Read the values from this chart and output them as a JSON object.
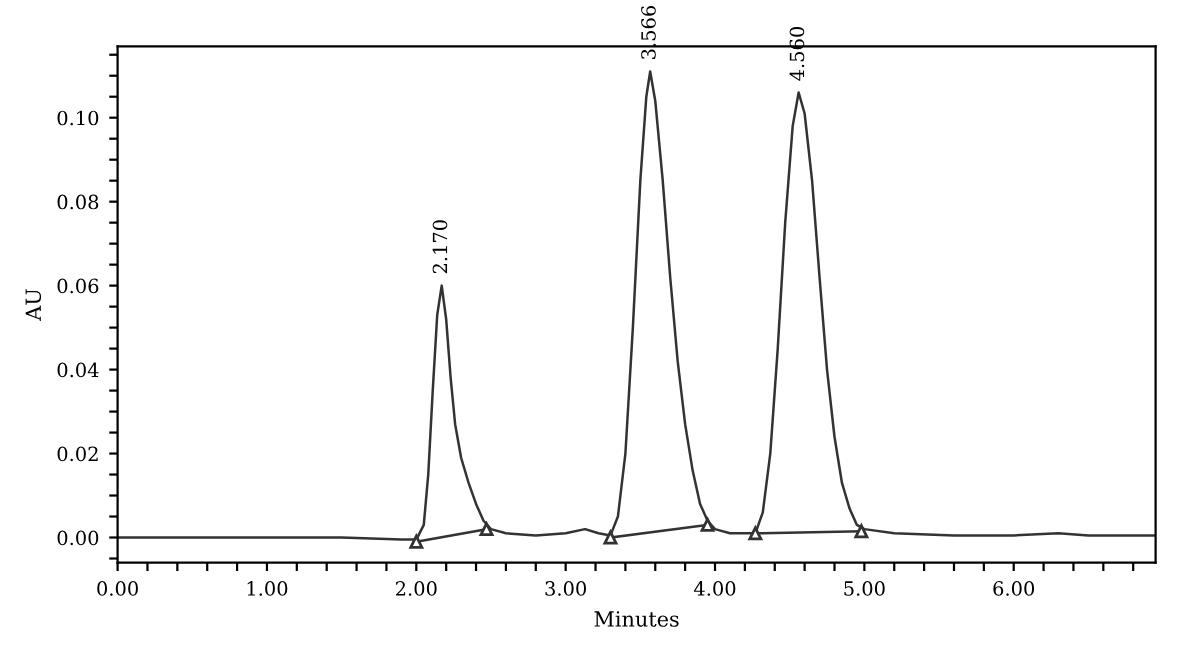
{
  "chart_data": {
    "type": "line",
    "xlabel": "Minutes",
    "ylabel": "AU",
    "xlim": [
      0,
      6.95
    ],
    "ylim": [
      -0.006,
      0.117
    ],
    "xticks": [
      {
        "value": 0,
        "label": "0.00"
      },
      {
        "value": 0.2,
        "label": null
      },
      {
        "value": 0.4,
        "label": null
      },
      {
        "value": 0.6,
        "label": null
      },
      {
        "value": 0.8,
        "label": null
      },
      {
        "value": 1,
        "label": "1.00"
      },
      {
        "value": 1.2,
        "label": null
      },
      {
        "value": 1.4,
        "label": null
      },
      {
        "value": 1.6,
        "label": null
      },
      {
        "value": 1.8,
        "label": null
      },
      {
        "value": 2,
        "label": "2.00"
      },
      {
        "value": 2.2,
        "label": null
      },
      {
        "value": 2.4,
        "label": null
      },
      {
        "value": 2.6,
        "label": null
      },
      {
        "value": 2.8,
        "label": null
      },
      {
        "value": 3,
        "label": "3.00"
      },
      {
        "value": 3.2,
        "label": null
      },
      {
        "value": 3.4,
        "label": null
      },
      {
        "value": 3.6,
        "label": null
      },
      {
        "value": 3.8,
        "label": null
      },
      {
        "value": 4,
        "label": "4.00"
      },
      {
        "value": 4.2,
        "label": null
      },
      {
        "value": 4.4,
        "label": null
      },
      {
        "value": 4.6,
        "label": null
      },
      {
        "value": 4.8,
        "label": null
      },
      {
        "value": 5,
        "label": "5.00"
      },
      {
        "value": 5.2,
        "label": null
      },
      {
        "value": 5.4,
        "label": null
      },
      {
        "value": 5.6,
        "label": null
      },
      {
        "value": 5.8,
        "label": null
      },
      {
        "value": 6,
        "label": "6.00"
      },
      {
        "value": 6.2,
        "label": null
      },
      {
        "value": 6.4,
        "label": null
      },
      {
        "value": 6.6,
        "label": null
      },
      {
        "value": 6.8,
        "label": null
      }
    ],
    "yticks": [
      {
        "value": -0.005,
        "label": null
      },
      {
        "value": 0,
        "label": "0.00"
      },
      {
        "value": 0.005,
        "label": null
      },
      {
        "value": 0.01,
        "label": null
      },
      {
        "value": 0.015,
        "label": null
      },
      {
        "value": 0.02,
        "label": "0.02"
      },
      {
        "value": 0.025,
        "label": null
      },
      {
        "value": 0.03,
        "label": null
      },
      {
        "value": 0.035,
        "label": null
      },
      {
        "value": 0.04,
        "label": "0.04"
      },
      {
        "value": 0.045,
        "label": null
      },
      {
        "value": 0.05,
        "label": null
      },
      {
        "value": 0.055,
        "label": null
      },
      {
        "value": 0.06,
        "label": "0.06"
      },
      {
        "value": 0.065,
        "label": null
      },
      {
        "value": 0.07,
        "label": null
      },
      {
        "value": 0.075,
        "label": null
      },
      {
        "value": 0.08,
        "label": "0.08"
      },
      {
        "value": 0.085,
        "label": null
      },
      {
        "value": 0.09,
        "label": null
      },
      {
        "value": 0.095,
        "label": null
      },
      {
        "value": 0.1,
        "label": "0.10"
      },
      {
        "value": 0.105,
        "label": null
      },
      {
        "value": 0.11,
        "label": null
      },
      {
        "value": 0.115,
        "label": null
      }
    ],
    "grid": false,
    "marker": "none",
    "line_style": "solid",
    "series": [
      {
        "color": "#333333",
        "x": [
          0,
          0.5,
          1.0,
          1.5,
          1.9,
          2.0,
          2.05,
          2.08,
          2.11,
          2.14,
          2.17,
          2.2,
          2.23,
          2.26,
          2.3,
          2.35,
          2.4,
          2.45,
          2.5,
          2.6,
          2.8,
          3.0,
          3.13,
          3.22,
          3.3,
          3.35,
          3.4,
          3.45,
          3.5,
          3.54,
          3.566,
          3.6,
          3.65,
          3.7,
          3.75,
          3.8,
          3.85,
          3.9,
          3.95,
          4.0,
          4.1,
          4.2,
          4.27,
          4.32,
          4.37,
          4.42,
          4.47,
          4.52,
          4.56,
          4.6,
          4.65,
          4.7,
          4.75,
          4.8,
          4.85,
          4.9,
          4.95,
          5.0,
          5.2,
          5.6,
          6.0,
          6.3,
          6.5,
          6.95
        ],
        "values": [
          0,
          0,
          0,
          0,
          -0.0005,
          -0.0005,
          0.003,
          0.015,
          0.035,
          0.053,
          0.06,
          0.052,
          0.038,
          0.027,
          0.019,
          0.013,
          0.008,
          0.004,
          0.002,
          0.001,
          0.0005,
          0.001,
          0.002,
          0.001,
          0.0005,
          0.005,
          0.02,
          0.05,
          0.085,
          0.105,
          0.111,
          0.104,
          0.085,
          0.062,
          0.042,
          0.027,
          0.016,
          0.008,
          0.004,
          0.002,
          0.001,
          0.001,
          0.001,
          0.006,
          0.02,
          0.045,
          0.075,
          0.098,
          0.106,
          0.101,
          0.085,
          0.062,
          0.04,
          0.024,
          0.013,
          0.007,
          0.003,
          0.002,
          0.001,
          0.0005,
          0.0005,
          0.001,
          0.0005,
          0.0005
        ]
      },
      {
        "color": "#333333",
        "marker": "triangle",
        "x": [
          2.0,
          2.47
        ],
        "values": [
          -0.001,
          0.002
        ]
      },
      {
        "color": "#333333",
        "marker": "triangle",
        "x": [
          3.3,
          3.95
        ],
        "values": [
          0.0,
          0.003
        ]
      },
      {
        "color": "#333333",
        "marker": "triangle",
        "x": [
          4.27,
          4.98
        ],
        "values": [
          0.001,
          0.0015
        ]
      }
    ],
    "annotations": [
      {
        "text": "2.170",
        "x": 2.17,
        "y": 0.06
      },
      {
        "text": "3.566",
        "x": 3.566,
        "y": 0.111
      },
      {
        "text": "4.560",
        "x": 4.56,
        "y": 0.106
      }
    ]
  }
}
